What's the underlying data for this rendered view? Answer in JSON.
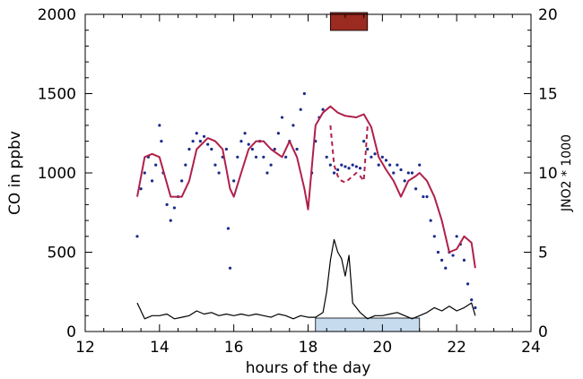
{
  "chart_data": {
    "type": "line",
    "xlabel": "hours of the day",
    "ylabel": "CO in ppbv",
    "y2label": "JNO2 * 1000",
    "xlim": [
      12,
      24
    ],
    "ylim": [
      0,
      2000
    ],
    "y2lim": [
      0,
      20
    ],
    "x_ticks": [
      12,
      14,
      16,
      18,
      20,
      22,
      24
    ],
    "y_ticks": [
      0,
      500,
      1000,
      1500,
      2000
    ],
    "y2_ticks": [
      0,
      5,
      10,
      15,
      20
    ],
    "colors": {
      "co_measured": "#1a2a8c",
      "co_model": "#b0204a",
      "jno2": "#000000",
      "bar_top": "#9b2a20",
      "bar_bottom": "#c7dbef"
    },
    "bar_top_range": [
      18.6,
      19.6
    ],
    "bar_bottom_range": [
      18.2,
      21.0
    ],
    "series": [
      {
        "key": "co_measured",
        "style": "dots",
        "x": [
          13.4,
          13.5,
          13.6,
          13.7,
          13.8,
          13.9,
          14.0,
          14.05,
          14.1,
          14.2,
          14.3,
          14.4,
          14.5,
          14.6,
          14.7,
          14.8,
          14.9,
          15.0,
          15.1,
          15.2,
          15.3,
          15.4,
          15.5,
          15.6,
          15.7,
          15.8,
          15.85,
          15.9,
          16.0,
          16.1,
          16.2,
          16.3,
          16.4,
          16.5,
          16.6,
          16.7,
          16.8,
          16.9,
          17.0,
          17.1,
          17.2,
          17.3,
          17.4,
          17.5,
          17.6,
          17.7,
          17.8,
          17.9,
          18.0,
          18.1,
          18.2,
          18.3,
          18.4,
          18.5,
          18.6,
          18.7,
          18.8,
          18.9,
          19.0,
          19.1,
          19.2,
          19.3,
          19.4,
          19.5,
          19.6,
          19.7,
          19.8,
          19.9,
          20.0,
          20.1,
          20.2,
          20.3,
          20.4,
          20.5,
          20.6,
          20.7,
          20.8,
          20.9,
          21.0,
          21.1,
          21.2,
          21.3,
          21.4,
          21.5,
          21.6,
          21.7,
          21.8,
          21.9,
          22.0,
          22.1,
          22.2,
          22.3,
          22.4,
          22.5
        ],
        "y": [
          600,
          900,
          1000,
          1100,
          950,
          1050,
          1300,
          1200,
          1000,
          800,
          700,
          780,
          850,
          950,
          1050,
          1150,
          1200,
          1250,
          1200,
          1230,
          1180,
          1150,
          1050,
          1000,
          1100,
          1150,
          650,
          400,
          950,
          1100,
          1200,
          1250,
          1180,
          1150,
          1100,
          1200,
          1100,
          1000,
          1050,
          1150,
          1250,
          1350,
          1100,
          1200,
          1300,
          1150,
          1400,
          1500,
          800,
          1000,
          1200,
          1350,
          1400,
          1100,
          1050,
          1000,
          1020,
          1050,
          1040,
          1030,
          1050,
          1040,
          1030,
          1200,
          1150,
          1100,
          1120,
          1050,
          1100,
          1080,
          1050,
          1000,
          1050,
          1020,
          950,
          1000,
          1000,
          900,
          1050,
          850,
          850,
          700,
          600,
          500,
          450,
          400,
          500,
          480,
          600,
          550,
          450,
          300,
          200,
          150
        ]
      },
      {
        "key": "co_model",
        "style": "solid",
        "x": [
          13.4,
          13.6,
          13.8,
          14.0,
          14.3,
          14.6,
          14.8,
          15.0,
          15.3,
          15.5,
          15.7,
          15.9,
          16.0,
          16.2,
          16.4,
          16.6,
          16.8,
          17.0,
          17.3,
          17.5,
          17.7,
          17.9,
          18.0,
          18.2,
          18.4,
          18.6,
          18.8,
          19.0,
          19.3,
          19.5,
          19.7,
          19.9,
          20.1,
          20.3,
          20.5,
          20.7,
          20.9,
          21.0,
          21.2,
          21.4,
          21.6,
          21.8,
          22.0,
          22.2,
          22.4,
          22.5
        ],
        "y": [
          850,
          1100,
          1120,
          1100,
          850,
          850,
          950,
          1150,
          1220,
          1200,
          1150,
          900,
          850,
          1000,
          1150,
          1200,
          1200,
          1150,
          1100,
          1200,
          1100,
          900,
          770,
          1300,
          1380,
          1420,
          1380,
          1360,
          1350,
          1370,
          1290,
          1100,
          1020,
          950,
          850,
          950,
          980,
          1000,
          950,
          850,
          700,
          500,
          520,
          600,
          560,
          400
        ]
      },
      {
        "key": "co_model",
        "style": "dashed",
        "x": [
          18.6,
          18.7,
          18.8,
          18.9,
          19.0,
          19.1,
          19.2,
          19.3,
          19.4,
          19.5,
          19.6
        ],
        "y": [
          1300,
          1050,
          980,
          950,
          940,
          960,
          980,
          1000,
          980,
          950,
          1300
        ]
      },
      {
        "key": "jno2",
        "style": "solid-secondary-axis",
        "x": [
          13.4,
          13.6,
          13.8,
          14.0,
          14.2,
          14.4,
          14.6,
          14.8,
          15.0,
          15.2,
          15.4,
          15.6,
          15.8,
          16.0,
          16.2,
          16.4,
          16.6,
          16.8,
          17.0,
          17.2,
          17.4,
          17.6,
          17.8,
          18.0,
          18.2,
          18.4,
          18.5,
          18.6,
          18.7,
          18.8,
          18.9,
          19.0,
          19.1,
          19.2,
          19.3,
          19.4,
          19.6,
          19.8,
          20.0,
          20.2,
          20.4,
          20.6,
          20.8,
          21.0,
          21.2,
          21.4,
          21.6,
          21.8,
          22.0,
          22.2,
          22.4,
          22.5
        ],
        "y": [
          1.8,
          0.8,
          1.0,
          1.0,
          1.1,
          0.8,
          0.9,
          1.0,
          1.3,
          1.1,
          1.2,
          1.0,
          1.1,
          1.0,
          1.1,
          1.0,
          1.1,
          1.0,
          0.9,
          1.1,
          1.0,
          0.8,
          1.0,
          0.9,
          0.9,
          1.2,
          2.5,
          4.5,
          5.8,
          5.0,
          4.6,
          3.5,
          4.8,
          1.8,
          1.5,
          1.2,
          0.8,
          1.0,
          1.0,
          1.1,
          1.2,
          1.0,
          0.8,
          1.0,
          1.2,
          1.5,
          1.3,
          1.6,
          1.3,
          1.5,
          1.8,
          1.0
        ]
      }
    ]
  }
}
